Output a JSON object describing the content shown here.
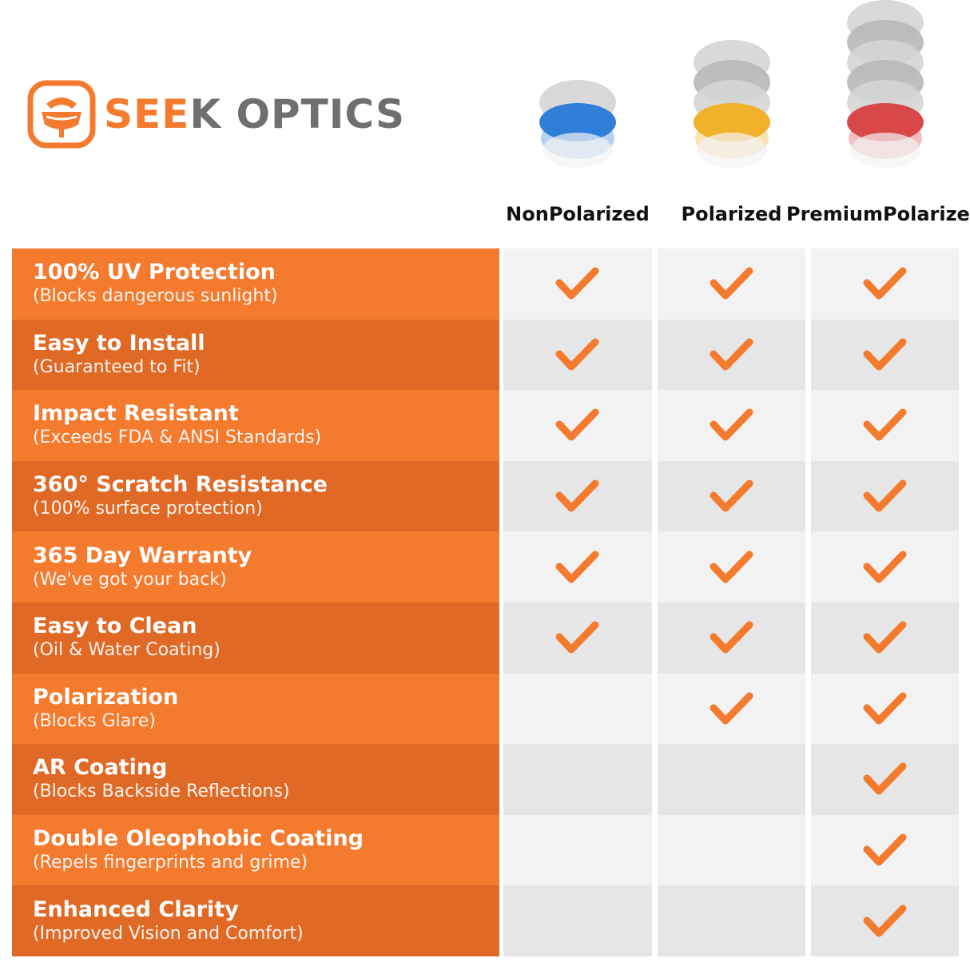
{
  "brand": {
    "part1": "SE",
    "part2": "E",
    "part3": "K",
    "part4": " OPTICS",
    "icon": "seek-optics-logo-icon"
  },
  "colors": {
    "orange": "#F47A2E",
    "orange_dark": "#E06A25",
    "gray_light": "#f2f2f2",
    "gray_dark": "#e6e6e6",
    "check": "#F47A2E"
  },
  "columns": [
    {
      "label": "Non Polarized",
      "lines": [
        "Non",
        "Polarized"
      ],
      "lens_color": "#2f7fd8",
      "icon": "lens-blue-icon"
    },
    {
      "label": "Polarized",
      "lines": [
        "Polarized",
        ""
      ],
      "lens_color": "#f2b12a",
      "icon": "lens-yellow-icon"
    },
    {
      "label": "Premium Polarized",
      "lines": [
        "Premium",
        "Polarized"
      ],
      "lens_color": "#d94848",
      "icon": "lens-red-icon"
    }
  ],
  "rows": [
    {
      "title": "100% UV Protection",
      "subtitle": "(Blocks dangerous sunlight)",
      "checks": [
        true,
        true,
        true
      ]
    },
    {
      "title": "Easy to Install",
      "subtitle": "(Guaranteed to Fit)",
      "checks": [
        true,
        true,
        true
      ]
    },
    {
      "title": "Impact Resistant",
      "subtitle": "(Exceeds FDA & ANSI Standards)",
      "checks": [
        true,
        true,
        true
      ]
    },
    {
      "title": "360° Scratch Resistance",
      "subtitle": "(100% surface protection)",
      "checks": [
        true,
        true,
        true
      ]
    },
    {
      "title": "365 Day Warranty",
      "subtitle": "(We've got your back)",
      "checks": [
        true,
        true,
        true
      ]
    },
    {
      "title": "Easy to Clean",
      "subtitle": "(Oil & Water Coating)",
      "checks": [
        true,
        true,
        true
      ]
    },
    {
      "title": "Polarization",
      "subtitle": "(Blocks Glare)",
      "checks": [
        false,
        true,
        true
      ]
    },
    {
      "title": "AR Coating",
      "subtitle": "(Blocks Backside Reflections)",
      "checks": [
        false,
        false,
        true
      ]
    },
    {
      "title": "Double Oleophobic Coating",
      "subtitle": "(Repels fingerprints and grime)",
      "checks": [
        false,
        false,
        true
      ]
    },
    {
      "title": "Enhanced Clarity",
      "subtitle": "(Improved Vision and Comfort)",
      "checks": [
        false,
        false,
        true
      ]
    }
  ]
}
